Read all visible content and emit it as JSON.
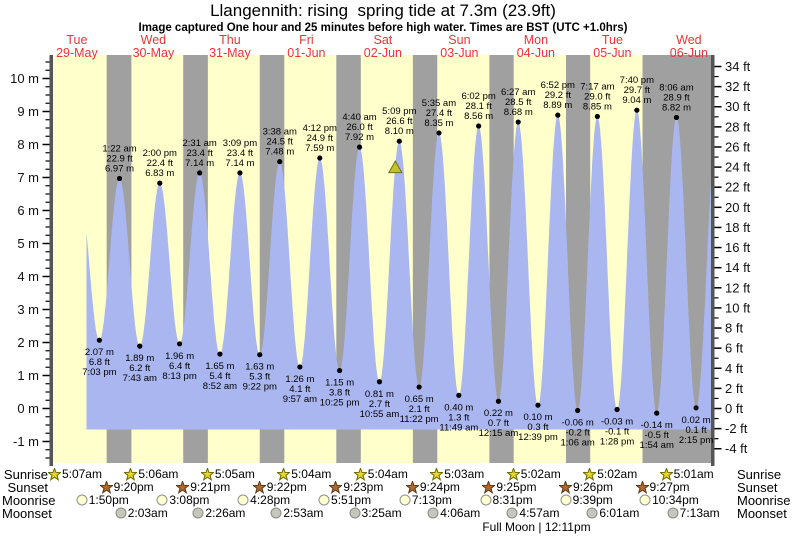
{
  "title": "Llangennith: rising  spring tide at 7.3m (23.9ft)",
  "subtitle": "Image captured One hour and 25 minutes before high water. Times are BST (UTC +1.0hrs)",
  "colors": {
    "day_band": "#ffffcc",
    "night_band": "#a0a0a0",
    "tide_fill": "#aab6f0",
    "date_label": "#ee3333",
    "marker_fill": "#c2c22e",
    "marker_edge": "#6f6f18",
    "axis_bar": "#555555",
    "sunrise_icon": "#e8d431",
    "sunrise_icon_edge": "#6b6b00",
    "sunset_icon": "#b06a30",
    "sunset_icon_edge": "#5e3a14",
    "moonrise_icon": "#ffffd0",
    "moonrise_icon_edge": "#909090",
    "moonset_icon": "#c6c6ba",
    "moonset_icon_edge": "#8a8a8a"
  },
  "chart_data": {
    "type": "area",
    "title": "Llangennith tide height forecast",
    "x_days": [
      {
        "dow": "Tue",
        "date": "29-May"
      },
      {
        "dow": "Wed",
        "date": "30-May"
      },
      {
        "dow": "Thu",
        "date": "31-May"
      },
      {
        "dow": "Fri",
        "date": "01-Jun"
      },
      {
        "dow": "Sat",
        "date": "02-Jun"
      },
      {
        "dow": "Sun",
        "date": "03-Jun"
      },
      {
        "dow": "Mon",
        "date": "04-Jun"
      },
      {
        "dow": "Tue",
        "date": "05-Jun"
      },
      {
        "dow": "Wed",
        "date": "06-Jun"
      }
    ],
    "y_axis_left": {
      "unit": "m",
      "min": -1,
      "max": 10,
      "label_step": 1,
      "minor_step": 0.25
    },
    "y_axis_right": {
      "unit": "ft",
      "min": -4,
      "max": 34,
      "label_step": 2,
      "minor_step": 1
    },
    "high_tides": [
      {
        "day": 1,
        "time": "1:22 am",
        "ft": "22.9 ft",
        "m": "6.97 m"
      },
      {
        "day": 1,
        "time": "2:00 pm",
        "ft": "22.4 ft",
        "m": "6.83 m"
      },
      {
        "day": 2,
        "time": "2:31 am",
        "ft": "23.4 ft",
        "m": "7.14 m"
      },
      {
        "day": 2,
        "time": "3:09 pm",
        "ft": "23.4 ft",
        "m": "7.14 m"
      },
      {
        "day": 3,
        "time": "3:38 am",
        "ft": "24.5 ft",
        "m": "7.48 m"
      },
      {
        "day": 3,
        "time": "4:12 pm",
        "ft": "24.9 ft",
        "m": "7.59 m"
      },
      {
        "day": 4,
        "time": "4:40 am",
        "ft": "26.0 ft",
        "m": "7.92 m"
      },
      {
        "day": 4,
        "time": "5:09 pm",
        "ft": "26.6 ft",
        "m": "8.10 m"
      },
      {
        "day": 5,
        "time": "5:35 am",
        "ft": "27.4 ft",
        "m": "8.35 m"
      },
      {
        "day": 5,
        "time": "6:02 pm",
        "ft": "28.1 ft",
        "m": "8.56 m"
      },
      {
        "day": 6,
        "time": "6:27 am",
        "ft": "28.5 ft",
        "m": "8.68 m"
      },
      {
        "day": 6,
        "time": "6:52 pm",
        "ft": "29.2 ft",
        "m": "8.89 m"
      },
      {
        "day": 7,
        "time": "7:17 am",
        "ft": "29.0 ft",
        "m": "8.85 m"
      },
      {
        "day": 7,
        "time": "7:40 pm",
        "ft": "29.7 ft",
        "m": "9.04 m"
      },
      {
        "day": 8,
        "time": "8:06 am",
        "ft": "28.9 ft",
        "m": "8.82 m"
      }
    ],
    "low_tides": [
      {
        "day": 0,
        "time": "7:03 pm",
        "ft": "6.8 ft",
        "m": "2.07 m"
      },
      {
        "day": 1,
        "time": "7:43 am",
        "ft": "6.2 ft",
        "m": "1.89 m"
      },
      {
        "day": 1,
        "time": "8:13 pm",
        "ft": "6.4 ft",
        "m": "1.96 m"
      },
      {
        "day": 2,
        "time": "8:52 am",
        "ft": "5.4 ft",
        "m": "1.65 m"
      },
      {
        "day": 2,
        "time": "9:22 pm",
        "ft": "5.3 ft",
        "m": "1.63 m"
      },
      {
        "day": 3,
        "time": "9:57 am",
        "ft": "4.1 ft",
        "m": "1.26 m"
      },
      {
        "day": 3,
        "time": "10:25 pm",
        "ft": "3.8 ft",
        "m": "1.15 m"
      },
      {
        "day": 4,
        "time": "10:55 am",
        "ft": "2.7 ft",
        "m": "0.81 m"
      },
      {
        "day": 4,
        "time": "11:22 pm",
        "ft": "2.1 ft",
        "m": "0.65 m"
      },
      {
        "day": 5,
        "time": "11:49 am",
        "ft": "1.3 ft",
        "m": "0.40 m"
      },
      {
        "day": 6,
        "time": "12:15 am",
        "ft": "0.7 ft",
        "m": "0.22 m"
      },
      {
        "day": 6,
        "time": "12:39 pm",
        "ft": "0.3 ft",
        "m": "0.10 m"
      },
      {
        "day": 7,
        "time": "1:06 am",
        "ft": "-0.2 ft",
        "m": "-0.06 m"
      },
      {
        "day": 7,
        "time": "1:28 pm",
        "ft": "-0.1 ft",
        "m": "-0.03 m"
      },
      {
        "day": 8,
        "time": "1:54 am",
        "ft": "-0.5 ft",
        "m": "-0.14 m"
      },
      {
        "day": 8,
        "time": "2:15 pm",
        "ft": "0.1 ft",
        "m": "0.02 m"
      }
    ],
    "current_tide_marker": {
      "height_m": 7.3,
      "near_high_day": 4,
      "near_high_time": "5:09 pm"
    }
  },
  "astro": {
    "rows": [
      {
        "id": "sunrise",
        "label": "Sunrise",
        "events": [
          {
            "day": 0,
            "time": "5:07am"
          },
          {
            "day": 1,
            "time": "5:06am"
          },
          {
            "day": 2,
            "time": "5:05am"
          },
          {
            "day": 3,
            "time": "5:04am"
          },
          {
            "day": 4,
            "time": "5:04am"
          },
          {
            "day": 5,
            "time": "5:03am"
          },
          {
            "day": 6,
            "time": "5:02am"
          },
          {
            "day": 7,
            "time": "5:02am"
          },
          {
            "day": 8,
            "time": "5:01am"
          }
        ]
      },
      {
        "id": "sunset",
        "label": "Sunset",
        "events": [
          {
            "day": 0,
            "time": "9:20pm"
          },
          {
            "day": 1,
            "time": "9:21pm"
          },
          {
            "day": 2,
            "time": "9:22pm"
          },
          {
            "day": 3,
            "time": "9:23pm"
          },
          {
            "day": 4,
            "time": "9:24pm"
          },
          {
            "day": 5,
            "time": "9:25pm"
          },
          {
            "day": 6,
            "time": "9:26pm"
          },
          {
            "day": 7,
            "time": "9:27pm"
          }
        ]
      },
      {
        "id": "moonrise",
        "label": "Moonrise",
        "events": [
          {
            "day": 0,
            "time": "1:50pm"
          },
          {
            "day": 1,
            "time": "3:08pm"
          },
          {
            "day": 2,
            "time": "4:28pm"
          },
          {
            "day": 3,
            "time": "5:51pm"
          },
          {
            "day": 4,
            "time": "7:13pm"
          },
          {
            "day": 5,
            "time": "8:31pm"
          },
          {
            "day": 6,
            "time": "9:39pm"
          },
          {
            "day": 7,
            "time": "10:34pm"
          }
        ]
      },
      {
        "id": "moonset",
        "label": "Moonset",
        "events": [
          {
            "day": 1,
            "time": "2:03am"
          },
          {
            "day": 2,
            "time": "2:26am"
          },
          {
            "day": 3,
            "time": "2:53am"
          },
          {
            "day": 4,
            "time": "3:25am"
          },
          {
            "day": 5,
            "time": "4:06am"
          },
          {
            "day": 6,
            "time": "4:57am"
          },
          {
            "day": 7,
            "time": "6:01am"
          },
          {
            "day": 8,
            "time": "7:13am"
          }
        ]
      }
    ],
    "full_moon": {
      "text": "Full Moon | 12:11pm",
      "day": 6,
      "time": "12:11pm"
    }
  }
}
